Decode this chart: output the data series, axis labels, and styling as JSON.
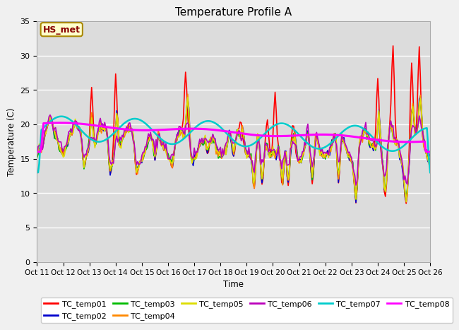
{
  "title": "Temperature Profile A",
  "xlabel": "Time",
  "ylabel": "Temperature (C)",
  "ylim": [
    0,
    35
  ],
  "annotation": "HS_met",
  "series_names": [
    "TC_temp01",
    "TC_temp02",
    "TC_temp03",
    "TC_temp04",
    "TC_temp05",
    "TC_temp06",
    "TC_temp07",
    "TC_temp08"
  ],
  "series_colors": [
    "#ff0000",
    "#0000cc",
    "#00bb00",
    "#ff8800",
    "#dddd00",
    "#bb00bb",
    "#00cccc",
    "#ff00ff"
  ],
  "series_widths": [
    1.2,
    1.2,
    1.2,
    1.2,
    1.2,
    1.2,
    1.8,
    2.2
  ],
  "x_tick_labels": [
    "Oct 11",
    "Oct 12",
    "Oct 13",
    "Oct 14",
    "Oct 15",
    "Oct 16",
    "Oct 17",
    "Oct 18",
    "Oct 19",
    "Oct 20",
    "Oct 21",
    "Oct 22",
    "Oct 23",
    "Oct 24",
    "Oct 25",
    "Oct 26"
  ],
  "fig_facecolor": "#f0f0f0",
  "plot_bg_color": "#dcdcdc",
  "grid_color": "#ffffff",
  "annotation_facecolor": "#ffffcc",
  "annotation_edgecolor": "#aa8800",
  "annotation_textcolor": "#880000"
}
